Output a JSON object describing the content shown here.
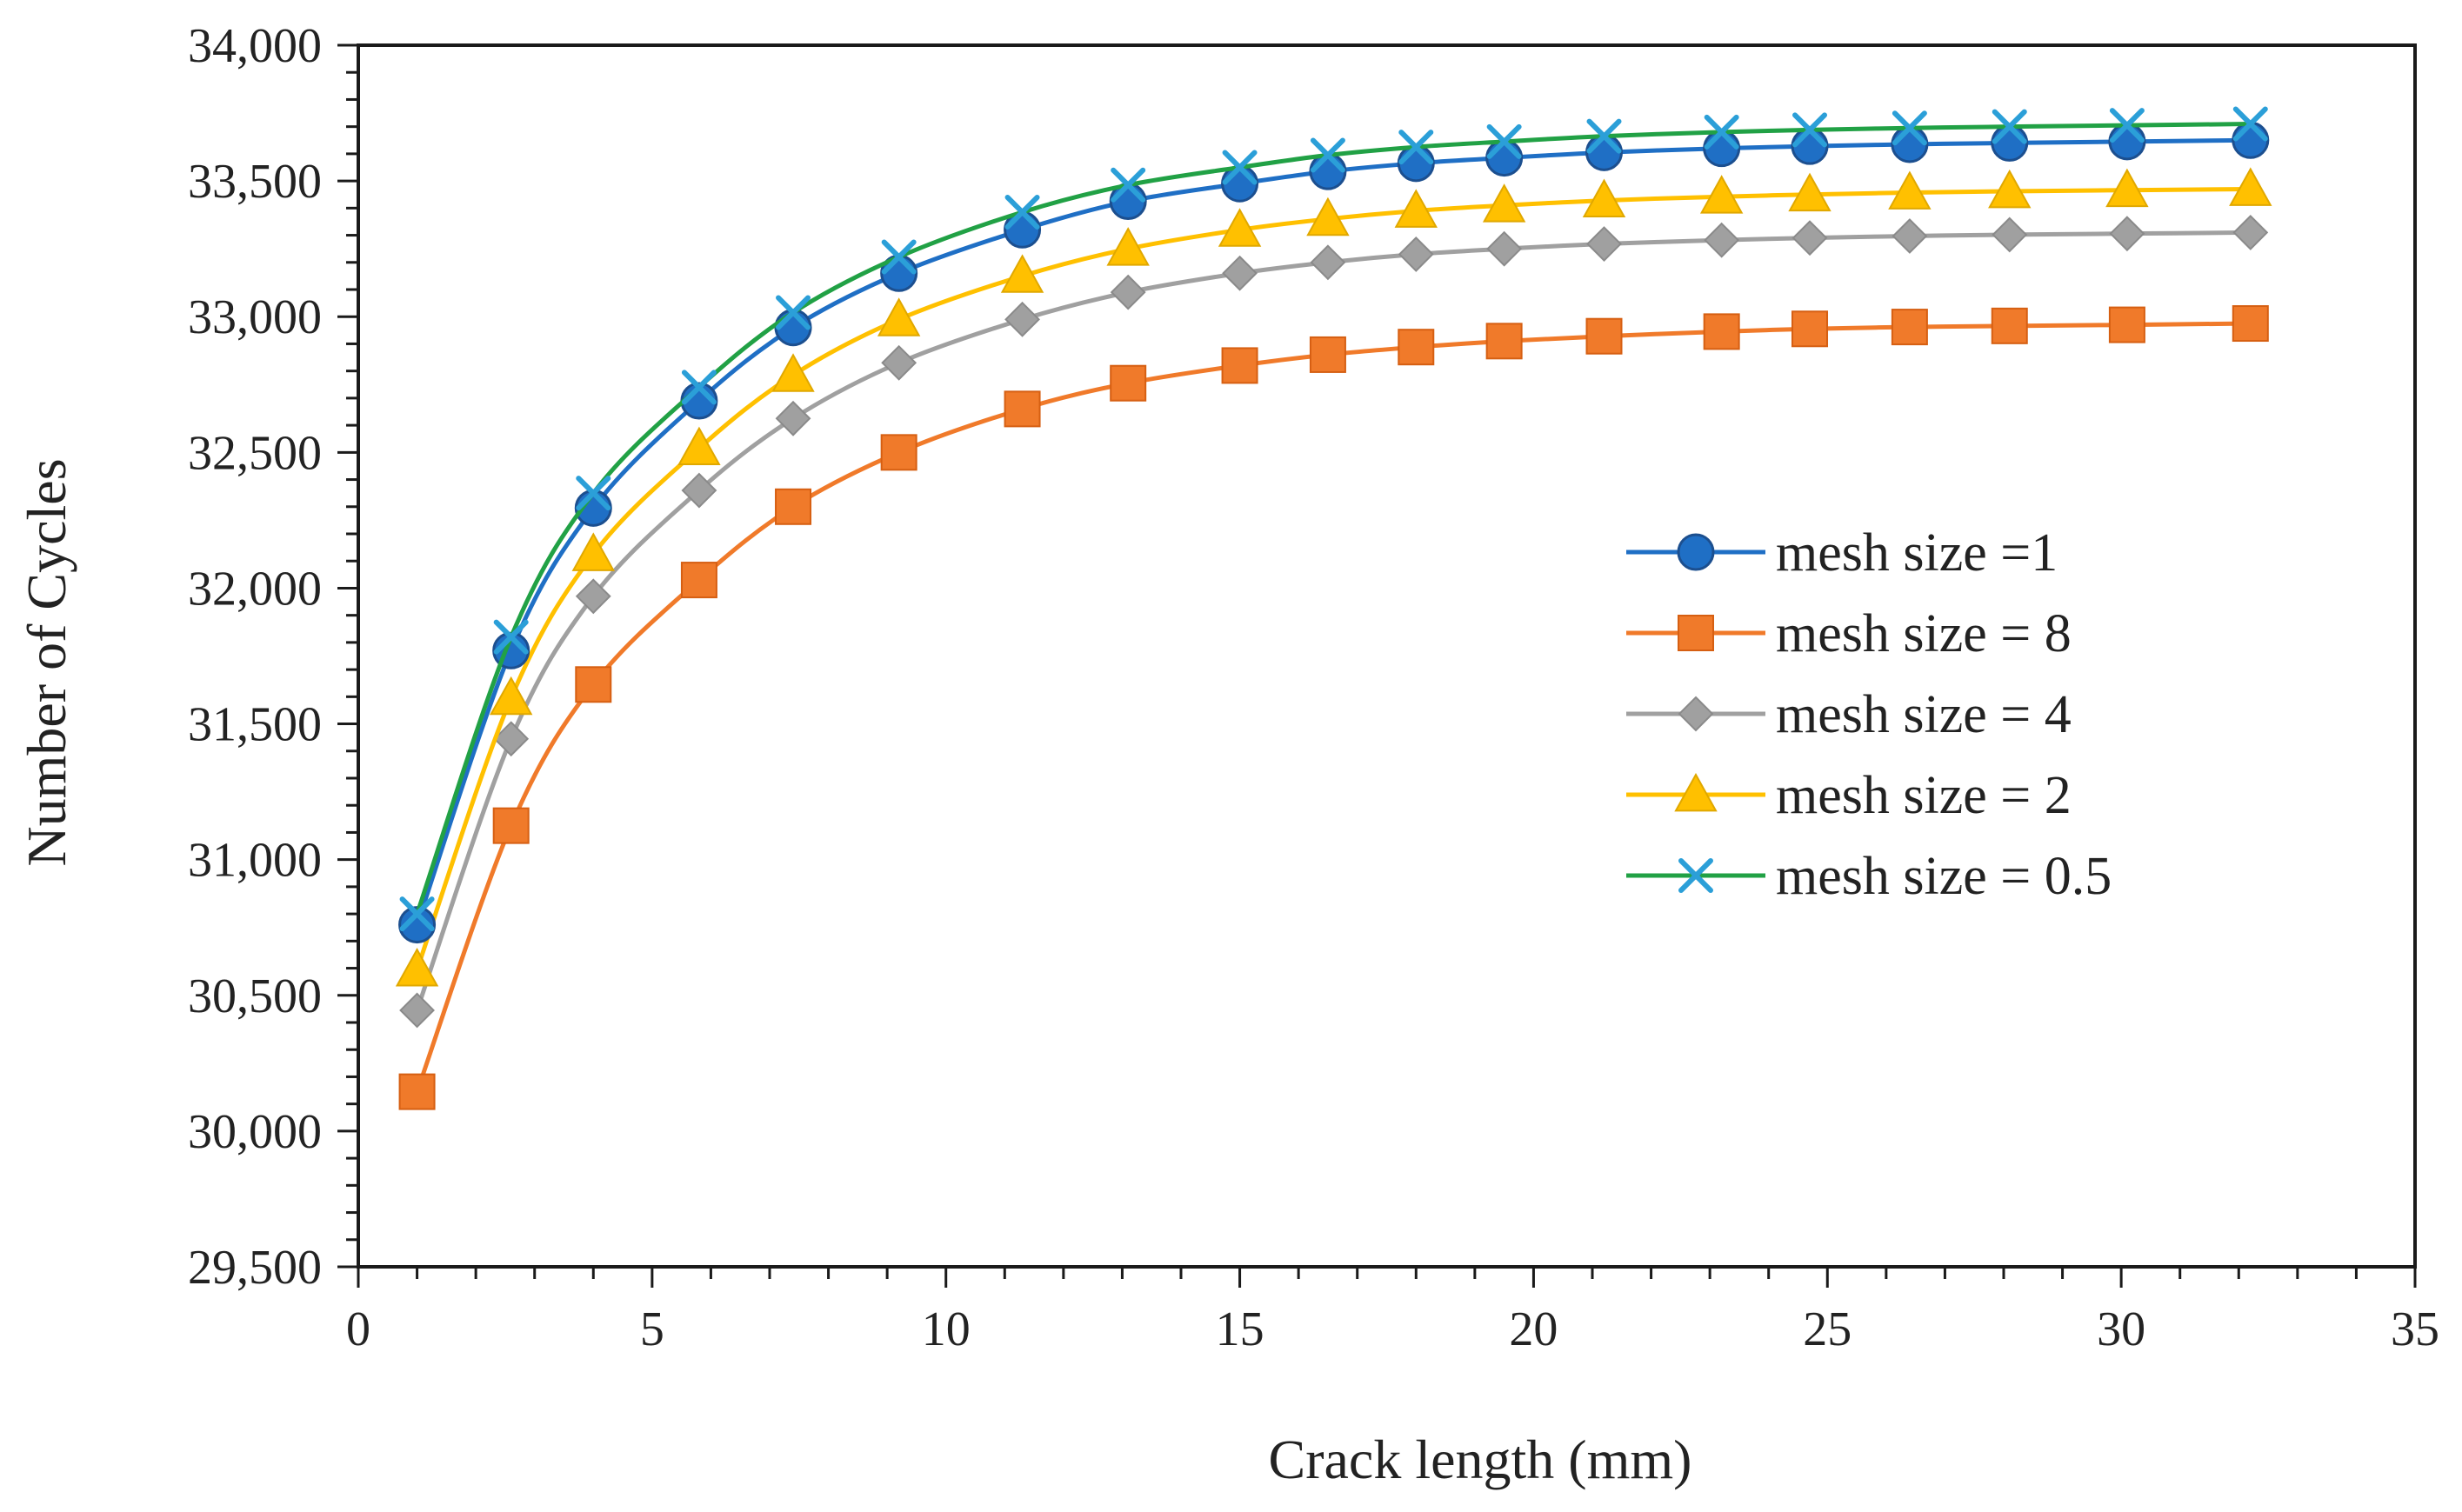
{
  "chart_data": {
    "type": "line",
    "title": "",
    "xlabel": "Crack length (mm)",
    "ylabel": "Number of Cycles",
    "xlim": [
      0,
      35
    ],
    "ylim": [
      29500,
      34000
    ],
    "x_ticks": [
      0,
      5,
      10,
      15,
      20,
      25,
      30,
      35
    ],
    "x_tick_labels": [
      "0",
      "5",
      "10",
      "15",
      "20",
      "25",
      "30",
      "35"
    ],
    "y_ticks": [
      29500,
      30000,
      30500,
      31000,
      31500,
      32000,
      32500,
      33000,
      33500,
      34000
    ],
    "y_tick_labels": [
      "29,500",
      "30,000",
      "30,500",
      "31,000",
      "31,500",
      "32,000",
      "32,500",
      "33,000",
      "33,500",
      "34,000"
    ],
    "grid": false,
    "legend_position": "center-right",
    "x": [
      1.0,
      2.6,
      4.0,
      5.8,
      7.4,
      9.2,
      11.3,
      13.1,
      15.0,
      16.5,
      18.0,
      19.5,
      21.2,
      23.2,
      24.7,
      26.4,
      28.1,
      30.1,
      32.2
    ],
    "series": [
      {
        "name": "mesh size =1",
        "color": "#1F6FC5",
        "marker": "circle",
        "values": [
          30760,
          31770,
          32295,
          32690,
          32960,
          33160,
          33320,
          33425,
          33490,
          33535,
          33565,
          33585,
          33605,
          33620,
          33628,
          33635,
          33640,
          33645,
          33650
        ]
      },
      {
        "name": "mesh size = 8",
        "color": "#F07A2A",
        "marker": "square",
        "values": [
          30145,
          31125,
          31645,
          32030,
          32300,
          32500,
          32660,
          32755,
          32820,
          32860,
          32888,
          32910,
          32928,
          32945,
          32955,
          32962,
          32966,
          32970,
          32975
        ]
      },
      {
        "name": "mesh size = 4",
        "color": "#A0A0A0",
        "marker": "diamond",
        "values": [
          30445,
          31445,
          31970,
          32360,
          32625,
          32830,
          32990,
          33090,
          33160,
          33200,
          33230,
          33250,
          33268,
          33282,
          33290,
          33297,
          33302,
          33306,
          33310
        ]
      },
      {
        "name": "mesh size = 2",
        "color": "#FFC000",
        "marker": "triangle",
        "values": [
          30595,
          31595,
          32125,
          32515,
          32785,
          32990,
          33150,
          33250,
          33320,
          33360,
          33390,
          33410,
          33428,
          33442,
          33450,
          33457,
          33462,
          33466,
          33470
        ]
      },
      {
        "name": "mesh size = 0.5",
        "color": "#21A145",
        "marker": "x",
        "marker_color": "#2B9FD8",
        "values": [
          30800,
          31820,
          32350,
          32740,
          33015,
          33220,
          33385,
          33485,
          33550,
          33595,
          33625,
          33645,
          33665,
          33680,
          33688,
          33695,
          33700,
          33705,
          33710
        ]
      }
    ]
  }
}
